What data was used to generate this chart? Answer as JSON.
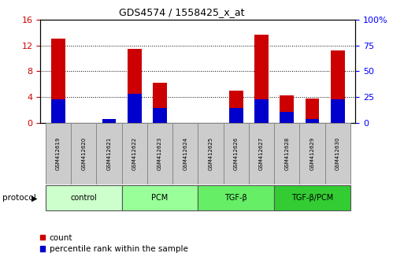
{
  "title": "GDS4574 / 1558425_x_at",
  "samples": [
    "GSM412619",
    "GSM412620",
    "GSM412621",
    "GSM412622",
    "GSM412623",
    "GSM412624",
    "GSM412625",
    "GSM412626",
    "GSM412627",
    "GSM412628",
    "GSM412629",
    "GSM412630"
  ],
  "count_values": [
    13.0,
    0.0,
    0.5,
    11.5,
    6.2,
    0.0,
    0.0,
    5.0,
    13.7,
    4.3,
    3.7,
    11.2
  ],
  "percentile_values": [
    23.0,
    0.0,
    3.5,
    28.0,
    14.5,
    0.0,
    0.0,
    14.5,
    23.0,
    10.5,
    4.0,
    23.0
  ],
  "count_color": "#cc0000",
  "percentile_color": "#0000cc",
  "ylim_left": [
    0,
    16
  ],
  "ylim_right": [
    0,
    100
  ],
  "yticks_left": [
    0,
    4,
    8,
    12,
    16
  ],
  "yticks_right": [
    0,
    25,
    50,
    75,
    100
  ],
  "groups": [
    {
      "label": "control",
      "start": 0,
      "end": 2,
      "color": "#ccffcc"
    },
    {
      "label": "PCM",
      "start": 3,
      "end": 5,
      "color": "#99ff99"
    },
    {
      "label": "TGF-β",
      "start": 6,
      "end": 8,
      "color": "#66ee66"
    },
    {
      "label": "TGF-β/PCM",
      "start": 9,
      "end": 11,
      "color": "#33cc33"
    }
  ],
  "protocol_label": "protocol",
  "bar_width": 0.55,
  "background_color": "#ffffff"
}
